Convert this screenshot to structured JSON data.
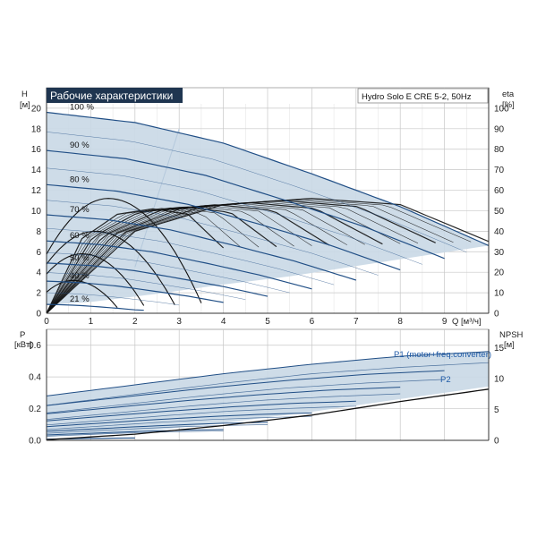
{
  "title": "Рабочие характеристики",
  "model": "Hydro Solo E CRE 5-2, 50Hz",
  "colors": {
    "grid": "#c7c7c7",
    "region": "#c9d8e6",
    "curve_blue": "#214f86",
    "curve_black": "#111111",
    "title_bg": "#1f3550"
  },
  "chart_data": [
    {
      "type": "line",
      "name": "head",
      "xlabel": "Q [м³/ч]",
      "ylabel_left": "H",
      "ylabel_left_unit": "[м]",
      "ylabel_right": "eta",
      "ylabel_right_unit": "[%]",
      "xlim": [
        0,
        10
      ],
      "ylim": [
        0,
        22
      ],
      "y2lim": [
        0,
        110
      ],
      "x_ticks": [
        0,
        1,
        2,
        3,
        4,
        5,
        6,
        7,
        8,
        9
      ],
      "y_ticks": [
        0,
        2,
        4,
        6,
        8,
        10,
        12,
        14,
        16,
        18,
        20
      ],
      "y2_ticks": [
        0,
        10,
        20,
        30,
        40,
        50,
        60,
        70,
        80,
        90,
        100
      ],
      "grid": true,
      "speed_labels": [
        "100 %",
        "90 %",
        "80 %",
        "70 %",
        "60 %",
        "50 %",
        "40 %",
        "21 %"
      ],
      "speed_fractions": [
        1.0,
        0.9,
        0.8,
        0.7,
        0.6,
        0.5,
        0.4,
        0.21
      ],
      "head_curves_100pct": {
        "q": [
          0,
          2,
          4,
          6,
          8,
          10
        ],
        "h": [
          19.6,
          18.6,
          16.6,
          13.6,
          10.4,
          6.6
        ]
      },
      "efficiency_curves_100pct": {
        "q": [
          0,
          2,
          4,
          6,
          8,
          10
        ],
        "eta": [
          0,
          40,
          53,
          56,
          53,
          35
        ]
      },
      "operating_region": {
        "q": [
          0,
          3.0,
          4.7,
          6.6,
          10.0,
          10.0,
          8.5,
          6.7,
          4.4,
          2.2,
          0
        ],
        "h": [
          19.6,
          18.0,
          16.4,
          14.2,
          6.6,
          6.6,
          5.3,
          4.3,
          3.0,
          1.9,
          0.8
        ]
      }
    },
    {
      "type": "line",
      "name": "power-npsh",
      "ylabel_left": "P",
      "ylabel_left_unit": "[кВт]",
      "ylabel_right": "NPSH",
      "ylabel_right_unit": "[м]",
      "xlim": [
        0,
        10
      ],
      "ylim": [
        0,
        0.7
      ],
      "y2lim": [
        0,
        18
      ],
      "y_ticks": [
        0.0,
        0.2,
        0.4,
        0.6
      ],
      "y2_ticks": [
        0,
        5,
        10,
        15
      ],
      "series": [
        {
          "name": "P1 (motor+freq.converter)",
          "q": [
            0,
            2,
            4,
            6,
            8,
            10
          ],
          "p": [
            0.28,
            0.35,
            0.42,
            0.48,
            0.53,
            0.56
          ]
        },
        {
          "name": "P2",
          "q": [
            0,
            2,
            4,
            6,
            8,
            10
          ],
          "p": [
            0.22,
            0.29,
            0.36,
            0.42,
            0.46,
            0.49
          ]
        }
      ],
      "npsh": {
        "q": [
          0,
          2,
          4,
          6,
          8,
          10
        ],
        "npsh": [
          0.1,
          1.0,
          2.4,
          4.1,
          6.3,
          8.3
        ]
      }
    }
  ]
}
